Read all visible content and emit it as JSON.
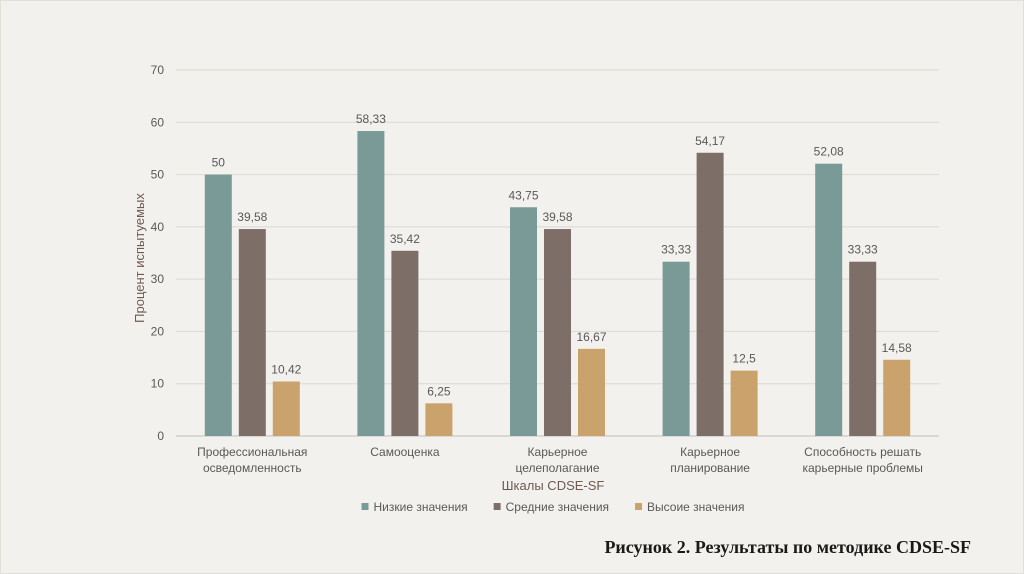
{
  "caption": "Рисунок 2. Результаты по методике CDSE-SF",
  "chart_data": {
    "type": "bar",
    "categories": [
      [
        "Профессиональная",
        "осведомленность"
      ],
      [
        "Самооценка"
      ],
      [
        "Карьерное",
        "целеполагание"
      ],
      [
        "Карьерное",
        "планирование"
      ],
      [
        "Способность решать",
        "карьерные проблемы"
      ]
    ],
    "series": [
      {
        "name": "Низкие значения",
        "color": "#7a9a97",
        "values": [
          50,
          58.33,
          43.75,
          33.33,
          52.08
        ],
        "labels": [
          "50",
          "58,33",
          "43,75",
          "33,33",
          "52,08"
        ]
      },
      {
        "name": "Средние значения",
        "color": "#7e6e68",
        "values": [
          39.58,
          35.42,
          39.58,
          54.17,
          33.33
        ],
        "labels": [
          "39,58",
          "35,42",
          "39,58",
          "54,17",
          "33,33"
        ]
      },
      {
        "name": "Высоие значения",
        "color": "#c9a36b",
        "values": [
          10.42,
          6.25,
          16.67,
          12.5,
          14.58
        ],
        "labels": [
          "10,42",
          "6,25",
          "16,67",
          "12,5",
          "14,58"
        ]
      }
    ],
    "xlabel": "Шкалы CDSE-SF",
    "ylabel": "Процент испытуемых",
    "ylim": [
      0,
      70
    ],
    "yticks": [
      0,
      10,
      20,
      30,
      40,
      50,
      60,
      70
    ],
    "grid": true,
    "legend_position": "bottom"
  }
}
